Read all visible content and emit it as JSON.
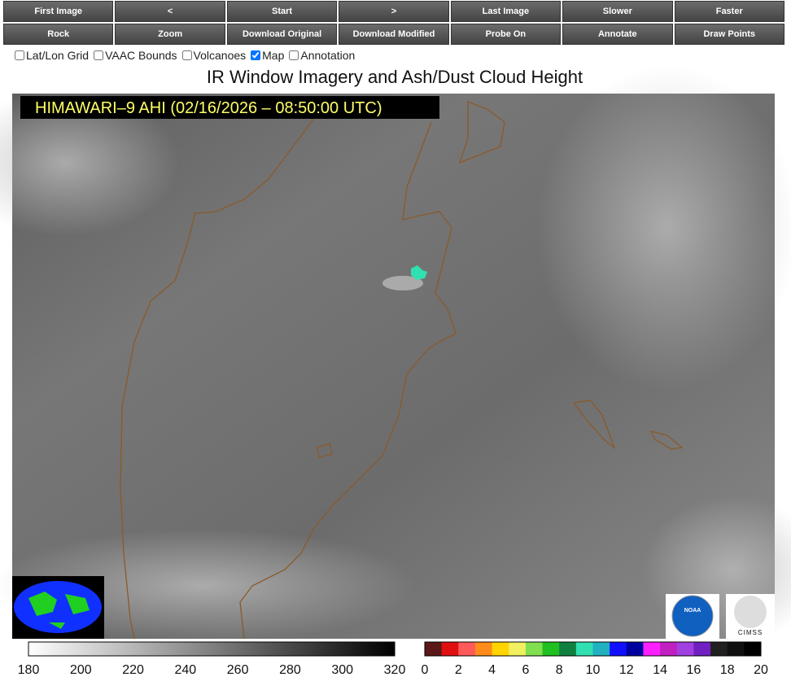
{
  "toolbar": {
    "rows": [
      [
        "First Image",
        "<",
        "Start",
        ">",
        "Last Image",
        "Slower",
        "Faster"
      ],
      [
        "Rock",
        "Zoom",
        "Download Original",
        "Download Modified",
        "Probe On",
        "Annotate",
        "Draw Points"
      ]
    ]
  },
  "options": [
    {
      "label": "Lat/Lon Grid",
      "checked": false
    },
    {
      "label": "VAAC Bounds",
      "checked": false
    },
    {
      "label": "Volcanoes",
      "checked": false
    },
    {
      "label": "Map",
      "checked": true
    },
    {
      "label": "Annotation",
      "checked": false
    }
  ],
  "image": {
    "title": "IR Window Imagery and Ash/Dust Cloud Height",
    "banner": "HIMAWARI–9 AHI (02/16/2026 – 08:50:00 UTC)",
    "logos": [
      "NOAA",
      "CIMSS"
    ]
  },
  "colorbars": {
    "temperature": {
      "ticks": [
        180,
        200,
        220,
        240,
        260,
        280,
        300,
        320
      ]
    },
    "height": {
      "ticks": [
        0,
        2,
        4,
        6,
        8,
        10,
        12,
        14,
        16,
        18,
        20
      ],
      "colors": [
        "#5a1818",
        "#e01010",
        "#ff5a5a",
        "#ff8c1a",
        "#ffd400",
        "#f0f060",
        "#80e050",
        "#20c020",
        "#108040",
        "#30e0b0",
        "#20b0c0",
        "#1010ff",
        "#0000a0",
        "#ff20ff",
        "#c020c0",
        "#a040e0",
        "#7020c0",
        "#202020",
        "#101010",
        "#000000"
      ]
    }
  }
}
